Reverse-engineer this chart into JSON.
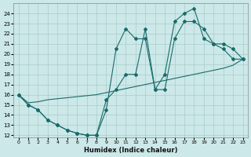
{
  "xlabel": "Humidex (Indice chaleur)",
  "bg_color": "#cce8e8",
  "grid_color": "#aacccc",
  "line_color": "#1a6b6b",
  "xlim": [
    -0.5,
    23.5
  ],
  "ylim": [
    11.8,
    25.0
  ],
  "xticks": [
    0,
    1,
    2,
    3,
    4,
    5,
    6,
    7,
    8,
    9,
    10,
    11,
    12,
    13,
    14,
    15,
    16,
    17,
    18,
    19,
    20,
    21,
    22,
    23
  ],
  "yticks": [
    12,
    13,
    14,
    15,
    16,
    17,
    18,
    19,
    20,
    21,
    22,
    23,
    24
  ],
  "line1_x": [
    0,
    1,
    2,
    3,
    4,
    5,
    6,
    7,
    8,
    9,
    10,
    11,
    12,
    13,
    14,
    15,
    16,
    17,
    18,
    19,
    20,
    21,
    22,
    23
  ],
  "line1_y": [
    16,
    15,
    14.5,
    13.5,
    13.0,
    12.5,
    12.2,
    12.0,
    12.0,
    14.5,
    20.5,
    22.5,
    21.5,
    21.5,
    16.5,
    18.0,
    23.2,
    24.0,
    24.5,
    21.5,
    21.0,
    20.5,
    19.5,
    19.5
  ],
  "line2_x": [
    0,
    1,
    2,
    3,
    4,
    5,
    6,
    7,
    8,
    9,
    10,
    11,
    12,
    13,
    14,
    15,
    16,
    17,
    18,
    19,
    20,
    21,
    22,
    23
  ],
  "line2_y": [
    16,
    15,
    14.5,
    13.5,
    13.0,
    12.5,
    12.2,
    12.0,
    12.0,
    15.5,
    16.5,
    18.0,
    18.0,
    22.5,
    16.5,
    16.5,
    21.5,
    23.2,
    23.2,
    22.5,
    21.0,
    21.0,
    20.5,
    19.5
  ],
  "line3_x": [
    0,
    1,
    2,
    3,
    4,
    5,
    6,
    7,
    8,
    9,
    10,
    11,
    12,
    13,
    14,
    15,
    16,
    17,
    18,
    19,
    20,
    21,
    22,
    23
  ],
  "line3_y": [
    16,
    15.2,
    15.3,
    15.5,
    15.6,
    15.7,
    15.8,
    15.9,
    16.0,
    16.2,
    16.4,
    16.6,
    16.8,
    17.0,
    17.2,
    17.4,
    17.6,
    17.8,
    18.0,
    18.2,
    18.4,
    18.6,
    18.9,
    19.5
  ]
}
